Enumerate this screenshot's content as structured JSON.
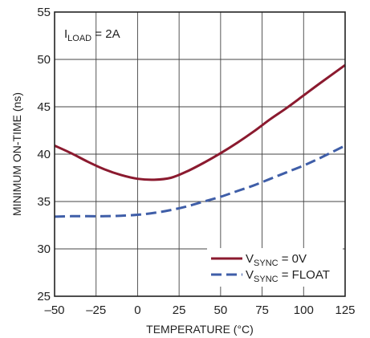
{
  "chart_data": {
    "type": "line",
    "xlabel": "TEMPERATURE (°C)",
    "ylabel": "MINIMUM ON-TIME (ns)",
    "xlim": [
      -50,
      125
    ],
    "ylim": [
      25,
      55
    ],
    "xticks": [
      -50,
      -25,
      0,
      25,
      50,
      75,
      100,
      125
    ],
    "yticks": [
      25,
      30,
      35,
      40,
      45,
      50,
      55
    ],
    "xtick_labels": [
      "–50",
      "–25",
      "0",
      "25",
      "50",
      "75",
      "100",
      "125"
    ],
    "ytick_labels": [
      "25",
      "30",
      "35",
      "40",
      "45",
      "50",
      "55"
    ],
    "grid": true,
    "legend_position": "bottom-right",
    "annotation": {
      "main": "I",
      "sub": "LOAD",
      "rest": " = 2A"
    },
    "series": [
      {
        "main": "V",
        "sub": "SYNC",
        "rest": " = 0V",
        "color": "#8b1a2f",
        "dash": "solid",
        "x": [
          -50,
          -40,
          -30,
          -20,
          -10,
          0,
          10,
          20,
          30,
          40,
          50,
          60,
          70,
          80,
          90,
          100,
          110,
          125
        ],
        "y": [
          40.9,
          40.1,
          39.2,
          38.4,
          37.8,
          37.4,
          37.3,
          37.5,
          38.2,
          39.1,
          40.1,
          41.2,
          42.4,
          43.7,
          44.9,
          46.2,
          47.5,
          49.4
        ]
      },
      {
        "main": "V",
        "sub": "SYNC",
        "rest": " = FLOAT",
        "color": "#3f5ea8",
        "dash": "dashed",
        "x": [
          -50,
          -40,
          -30,
          -20,
          -10,
          0,
          10,
          20,
          30,
          40,
          50,
          60,
          70,
          80,
          90,
          100,
          110,
          125
        ],
        "y": [
          33.4,
          33.45,
          33.45,
          33.45,
          33.5,
          33.6,
          33.8,
          34.1,
          34.5,
          35.0,
          35.5,
          36.1,
          36.7,
          37.4,
          38.1,
          38.8,
          39.6,
          40.9
        ]
      }
    ]
  }
}
